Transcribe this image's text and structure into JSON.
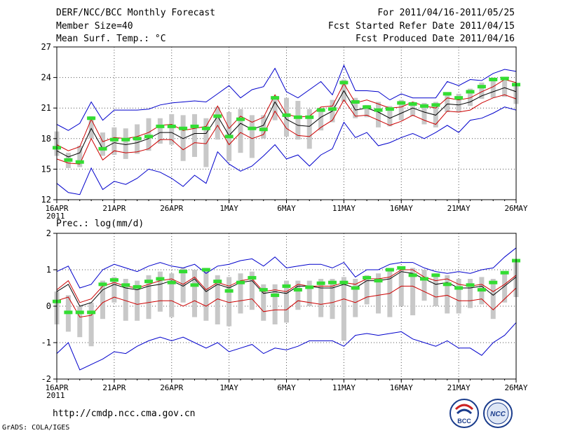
{
  "header": {
    "title": "DERF/NCC/BCC Monthly Forecast",
    "member": "Member Size=40",
    "variable": "Mean Surf. Temp.: °C",
    "period": "For 2011/04/16-2011/05/25",
    "started": "Fcst Started Refer Date 2011/04/15",
    "produced": "Fcst Produced Date 2011/04/16"
  },
  "footer": {
    "url": "http://cmdp.ncc.cma.gov.cn",
    "credit": "GrADS: COLA/IGES",
    "logo1_text": "BCC",
    "logo2_text": "NCC"
  },
  "colors": {
    "envelope": "#0000cc",
    "spread": "#cc0000",
    "mean": "#000000",
    "bar": "#c8c8c8",
    "marker": "#33dd33",
    "grid": "#555555"
  },
  "chart_data": [
    {
      "type": "line",
      "title": "Mean Surf. Temp.: °C",
      "ylim": [
        12,
        27
      ],
      "yticks": [
        12,
        15,
        18,
        21,
        24,
        27
      ],
      "xlim": [
        0,
        40
      ],
      "xticks": [
        {
          "day": 0,
          "label": "16APR",
          "sub": "2011"
        },
        {
          "day": 5,
          "label": "21APR"
        },
        {
          "day": 10,
          "label": "26APR"
        },
        {
          "day": 15,
          "label": "1MAY"
        },
        {
          "day": 20,
          "label": "6MAY"
        },
        {
          "day": 25,
          "label": "11MAY"
        },
        {
          "day": 30,
          "label": "16MAY"
        },
        {
          "day": 35,
          "label": "21MAY"
        },
        {
          "day": 40,
          "label": "26MAY"
        }
      ],
      "grid": true,
      "series": [
        {
          "name": "max",
          "values": [
            19.4,
            18.8,
            19.5,
            21.6,
            19.8,
            20.8,
            20.8,
            20.8,
            20.9,
            21.3,
            21.5,
            21.6,
            21.7,
            21.6,
            22.4,
            23.2,
            22.0,
            22.8,
            23.1,
            24.9,
            22.6,
            22.0,
            22.8,
            23.6,
            22.3,
            25.2,
            22.7,
            22.7,
            22.6,
            21.8,
            22.4,
            22.0,
            22.0,
            22.0,
            23.6,
            23.2,
            23.8,
            23.7,
            24.4,
            24.8,
            24.6
          ]
        },
        {
          "name": "upper",
          "values": [
            17.4,
            16.8,
            17.2,
            19.9,
            17.7,
            18.1,
            18.0,
            18.2,
            18.6,
            19.3,
            19.4,
            18.8,
            19.0,
            19.2,
            21.2,
            19.0,
            20.2,
            19.6,
            20.1,
            22.3,
            20.4,
            20.1,
            20.2,
            21.1,
            21.2,
            23.4,
            21.5,
            21.8,
            21.4,
            21.0,
            21.1,
            21.6,
            21.2,
            21.0,
            22.0,
            21.8,
            22.0,
            22.6,
            23.1,
            23.8,
            23.5
          ]
        },
        {
          "name": "mean",
          "values": [
            16.8,
            16.2,
            16.6,
            19.0,
            17.0,
            17.6,
            17.4,
            17.6,
            18.0,
            18.6,
            18.6,
            18.0,
            18.5,
            18.5,
            20.2,
            18.3,
            19.5,
            18.9,
            19.3,
            21.6,
            19.9,
            19.3,
            19.2,
            20.1,
            20.7,
            22.7,
            20.8,
            21.0,
            20.6,
            20.0,
            20.5,
            21.0,
            20.6,
            20.3,
            21.4,
            21.3,
            21.6,
            22.2,
            22.6,
            23.0,
            22.6
          ]
        },
        {
          "name": "lower",
          "values": [
            16.0,
            15.6,
            15.5,
            18.0,
            15.9,
            16.8,
            16.6,
            16.7,
            17.0,
            17.9,
            17.9,
            16.9,
            17.6,
            17.5,
            19.3,
            17.4,
            18.6,
            18.0,
            18.4,
            20.7,
            19.0,
            18.3,
            18.2,
            19.1,
            19.8,
            21.8,
            20.2,
            20.3,
            19.8,
            19.3,
            19.7,
            20.3,
            19.8,
            19.4,
            20.7,
            20.6,
            20.8,
            21.5,
            22.0,
            22.3,
            21.9
          ]
        },
        {
          "name": "min",
          "values": [
            13.6,
            12.7,
            12.5,
            15.1,
            13.0,
            13.8,
            13.5,
            14.1,
            15.0,
            14.7,
            14.1,
            13.3,
            14.4,
            13.6,
            16.7,
            15.5,
            14.8,
            15.3,
            16.3,
            17.4,
            16.0,
            16.4,
            15.3,
            16.4,
            17.0,
            19.6,
            18.1,
            18.6,
            17.3,
            17.6,
            18.1,
            18.5,
            18.0,
            18.6,
            19.3,
            18.6,
            19.8,
            20.0,
            20.5,
            21.1,
            20.8
          ]
        },
        {
          "name": "median",
          "values": [
            17.1,
            15.9,
            15.7,
            20.0,
            17.0,
            17.9,
            17.9,
            18.0,
            18.2,
            19.2,
            19.2,
            19.0,
            19.2,
            19.0,
            20.2,
            18.2,
            19.9,
            19.0,
            18.9,
            22.0,
            20.3,
            20.1,
            20.1,
            20.8,
            20.9,
            23.5,
            21.6,
            21.1,
            20.8,
            20.9,
            21.5,
            21.4,
            21.2,
            21.3,
            22.4,
            22.0,
            22.6,
            23.1,
            23.8,
            23.9,
            23.3
          ]
        },
        {
          "name": "iqr_high",
          "values": [
            18.7,
            16.6,
            17.3,
            20.2,
            18.6,
            19.1,
            19.0,
            19.4,
            20.0,
            20.0,
            20.4,
            20.3,
            20.4,
            20.0,
            21.1,
            20.6,
            20.9,
            20.3,
            20.3,
            22.2,
            22.0,
            21.7,
            20.9,
            21.0,
            21.8,
            23.8,
            22.0,
            21.3,
            21.6,
            21.2,
            21.8,
            21.6,
            21.5,
            21.6,
            22.3,
            22.4,
            22.9,
            23.5,
            24.0,
            23.8,
            23.3
          ]
        },
        {
          "name": "iqr_low",
          "values": [
            16.3,
            15.1,
            15.2,
            18.0,
            16.3,
            16.4,
            16.0,
            16.5,
            16.8,
            17.5,
            17.4,
            15.8,
            16.2,
            15.2,
            17.9,
            15.8,
            16.6,
            16.1,
            18.0,
            19.8,
            18.2,
            17.9,
            17.0,
            18.8,
            19.6,
            21.6,
            20.0,
            20.1,
            19.1,
            19.2,
            19.8,
            20.2,
            19.4,
            19.1,
            20.6,
            20.6,
            21.2,
            21.9,
            22.0,
            22.1,
            21.4
          ]
        }
      ]
    },
    {
      "type": "line",
      "title": "Prec.: log(mm/d)",
      "ylim": [
        -2,
        2
      ],
      "yticks": [
        -2,
        -1,
        0,
        1,
        2
      ],
      "xlim": [
        0,
        40
      ],
      "xticks": [
        {
          "day": 0,
          "label": "16APR",
          "sub": "2011"
        },
        {
          "day": 5,
          "label": "21APR"
        },
        {
          "day": 10,
          "label": "26APR"
        },
        {
          "day": 15,
          "label": "1MAY"
        },
        {
          "day": 20,
          "label": "6MAY"
        },
        {
          "day": 25,
          "label": "11MAY"
        },
        {
          "day": 30,
          "label": "16MAY"
        },
        {
          "day": 35,
          "label": "21MAY"
        },
        {
          "day": 40,
          "label": "26MAY"
        }
      ],
      "grid": true,
      "series": [
        {
          "name": "max",
          "values": [
            0.95,
            1.1,
            0.5,
            0.6,
            1.0,
            1.15,
            1.05,
            0.95,
            1.1,
            1.2,
            1.1,
            1.05,
            1.15,
            0.9,
            1.1,
            1.15,
            1.25,
            1.3,
            1.1,
            1.35,
            1.05,
            1.1,
            1.15,
            1.15,
            1.05,
            1.2,
            0.8,
            1.0,
            1.0,
            1.15,
            1.2,
            1.2,
            1.05,
            0.95,
            0.9,
            0.95,
            0.9,
            1.0,
            1.05,
            1.35,
            1.6
          ]
        },
        {
          "name": "upper",
          "values": [
            0.45,
            0.7,
            0.1,
            0.2,
            0.55,
            0.65,
            0.55,
            0.5,
            0.6,
            0.7,
            0.75,
            0.6,
            0.8,
            0.45,
            0.65,
            0.55,
            0.7,
            0.75,
            0.4,
            0.45,
            0.4,
            0.6,
            0.55,
            0.55,
            0.55,
            0.65,
            0.6,
            0.75,
            0.75,
            0.8,
            1.0,
            1.0,
            0.8,
            0.7,
            0.75,
            0.6,
            0.55,
            0.6,
            0.4,
            0.6,
            0.85
          ]
        },
        {
          "name": "mean",
          "values": [
            0.4,
            0.6,
            0.0,
            0.1,
            0.45,
            0.6,
            0.5,
            0.45,
            0.55,
            0.6,
            0.7,
            0.55,
            0.75,
            0.4,
            0.6,
            0.5,
            0.65,
            0.7,
            0.35,
            0.4,
            0.35,
            0.55,
            0.55,
            0.5,
            0.5,
            0.6,
            0.5,
            0.7,
            0.7,
            0.75,
            0.95,
            0.9,
            0.75,
            0.6,
            0.65,
            0.5,
            0.5,
            0.55,
            0.3,
            0.55,
            0.8
          ]
        },
        {
          "name": "lower",
          "values": [
            0.15,
            0.25,
            -0.3,
            -0.25,
            0.1,
            0.25,
            0.15,
            0.05,
            0.1,
            0.15,
            0.15,
            0.0,
            0.15,
            0.0,
            0.2,
            0.1,
            0.15,
            0.2,
            -0.15,
            -0.1,
            -0.1,
            0.15,
            0.1,
            0.05,
            0.1,
            0.2,
            0.1,
            0.25,
            0.3,
            0.35,
            0.55,
            0.55,
            0.4,
            0.25,
            0.3,
            0.15,
            0.15,
            0.2,
            -0.1,
            0.2,
            0.5
          ]
        },
        {
          "name": "min",
          "values": [
            -1.3,
            -1.0,
            -1.75,
            -1.6,
            -1.45,
            -1.25,
            -1.3,
            -1.1,
            -0.95,
            -0.85,
            -0.95,
            -0.85,
            -1.0,
            -1.15,
            -1.0,
            -1.25,
            -1.15,
            -1.05,
            -1.3,
            -1.15,
            -1.2,
            -1.1,
            -0.95,
            -0.95,
            -0.95,
            -1.1,
            -0.8,
            -0.75,
            -0.8,
            -0.75,
            -0.7,
            -0.9,
            -1.0,
            -1.1,
            -0.95,
            -1.15,
            -1.15,
            -1.35,
            -1.0,
            -0.8,
            -0.45
          ]
        },
        {
          "name": "median",
          "values": [
            0.13,
            -0.17,
            -0.17,
            -0.17,
            0.6,
            0.72,
            0.58,
            0.53,
            0.68,
            0.75,
            0.65,
            0.95,
            0.58,
            1.0,
            0.68,
            0.42,
            0.65,
            0.78,
            0.45,
            0.3,
            0.55,
            0.45,
            0.52,
            0.63,
            0.65,
            0.65,
            0.5,
            0.78,
            0.7,
            1.0,
            1.05,
            0.85,
            0.75,
            0.85,
            0.6,
            0.5,
            0.58,
            0.45,
            0.65,
            0.92,
            1.25
          ]
        },
        {
          "name": "iqr_high",
          "values": [
            0.4,
            0.3,
            0.0,
            0.1,
            0.7,
            0.8,
            0.75,
            0.7,
            0.85,
            0.95,
            0.9,
            1.05,
            1.0,
            1.05,
            0.85,
            0.8,
            0.9,
            0.95,
            0.6,
            0.6,
            0.7,
            0.7,
            0.7,
            0.75,
            0.75,
            0.8,
            0.75,
            0.85,
            0.9,
            1.05,
            1.1,
            1.05,
            1.0,
            0.9,
            0.85,
            0.75,
            0.75,
            0.8,
            0.75,
            0.95,
            1.2
          ]
        },
        {
          "name": "iqr_low",
          "values": [
            -0.5,
            -0.7,
            -0.85,
            -1.1,
            -0.35,
            0.1,
            -0.4,
            -0.4,
            -0.35,
            -0.15,
            -0.3,
            0.1,
            -0.3,
            -0.4,
            -0.5,
            -0.55,
            -0.2,
            -0.1,
            -0.4,
            -0.5,
            -0.45,
            -0.1,
            0.0,
            -0.3,
            -0.35,
            -0.95,
            -0.3,
            0.05,
            -0.2,
            -0.3,
            0.0,
            -0.25,
            0.15,
            0.0,
            -0.2,
            -0.2,
            -0.05,
            0.05,
            -0.35,
            0.1,
            0.25
          ]
        }
      ]
    }
  ]
}
